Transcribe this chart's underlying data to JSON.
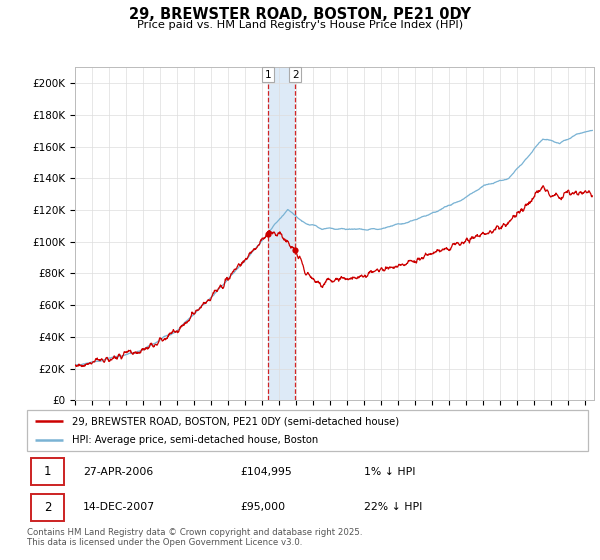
{
  "title": "29, BREWSTER ROAD, BOSTON, PE21 0DY",
  "subtitle": "Price paid vs. HM Land Registry's House Price Index (HPI)",
  "hpi_color": "#7ab3d4",
  "price_color": "#cc0000",
  "shaded_color": "#ddeaf7",
  "yticks": [
    0,
    20000,
    40000,
    60000,
    80000,
    100000,
    120000,
    140000,
    160000,
    180000,
    200000
  ],
  "ylim": [
    0,
    210000
  ],
  "xlim_start": 1995.0,
  "xlim_end": 2025.5,
  "t1_date": 2006.32,
  "t1_price": 104995,
  "t2_date": 2007.95,
  "t2_price": 95000,
  "legend_entries": [
    {
      "label": "29, BREWSTER ROAD, BOSTON, PE21 0DY (semi-detached house)",
      "color": "#cc0000"
    },
    {
      "label": "HPI: Average price, semi-detached house, Boston",
      "color": "#7ab3d4"
    }
  ],
  "table_rows": [
    {
      "box": "1",
      "date": "27-APR-2006",
      "price": "£104,995",
      "hpi": "1% ↓ HPI"
    },
    {
      "box": "2",
      "date": "14-DEC-2007",
      "price": "£95,000",
      "hpi": "22% ↓ HPI"
    }
  ],
  "footnote": "Contains HM Land Registry data © Crown copyright and database right 2025.\nThis data is licensed under the Open Government Licence v3.0.",
  "grid_color": "#dddddd"
}
